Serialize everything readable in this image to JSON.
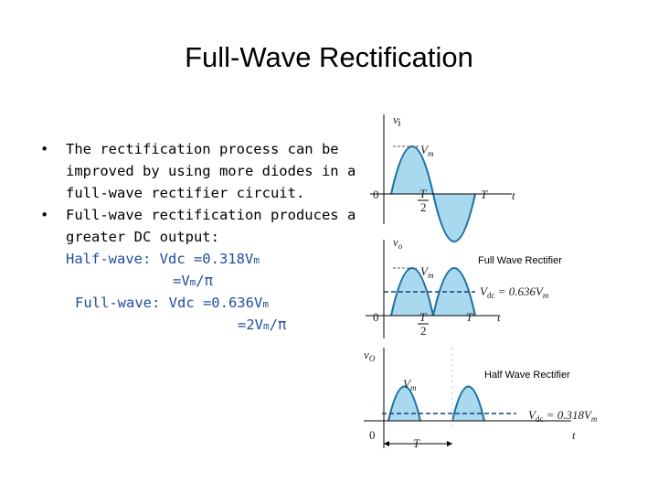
{
  "slide": {
    "title": "Full-Wave Rectification",
    "bullets": [
      [
        "The rectification process can be",
        "improved by using more diodes in a",
        "full-wave rectifier circuit."
      ],
      [
        "Full-wave rectification produces a",
        "greater DC output:"
      ]
    ],
    "bullet_mark": "•",
    "formulas": [
      {
        "pre": "Half-wave: Vdc =0.318V",
        "sub": "m"
      },
      {
        "pre": "=V",
        "sub": "m",
        "post": "/π"
      },
      {
        "pre": "Full-wave: Vdc =0.636V",
        "sub": "m"
      },
      {
        "pre": "=2V",
        "sub": "m",
        "post": "/π"
      }
    ],
    "figures": {
      "input": {
        "axis": "v",
        "axis_sub": "i",
        "peak": "V",
        "peak_sub": "m",
        "origin": "0",
        "half_num": "T",
        "half_den": "2",
        "period": "T",
        "time": "t"
      },
      "full": {
        "caption": "Full Wave Rectifier",
        "axis": "v",
        "axis_sub": "o",
        "peak": "V",
        "peak_sub": "m",
        "dc": "V",
        "dc_sub": "dc",
        "dc_eq": " = 0.636V",
        "dc_eq_sub": "m",
        "origin": "0",
        "half_num": "T",
        "half_den": "2",
        "period": "T",
        "time": "t"
      },
      "half": {
        "caption": "Half Wave Rectifier",
        "axis": "v",
        "axis_sub": "O",
        "peak": "V",
        "peak_sub": "m",
        "dc": "V",
        "dc_sub": "dc",
        "dc_eq": " = 0.318V",
        "dc_eq_sub": "m",
        "origin": "0",
        "period": "T",
        "time": "t"
      }
    }
  }
}
